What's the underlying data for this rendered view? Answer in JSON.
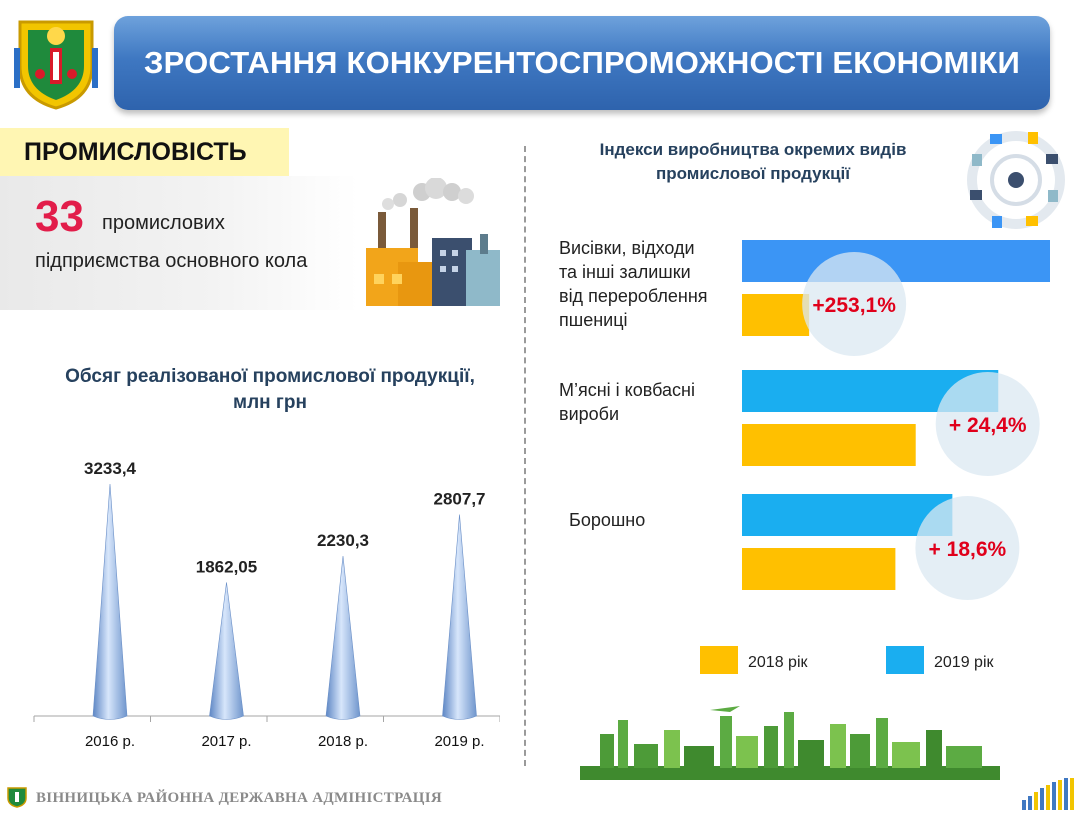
{
  "header": {
    "title": "ЗРОСТАННЯ КОНКУРЕНТОСПРОМОЖНОСТІ ЕКОНОМІКИ"
  },
  "industry": {
    "section_label": "ПРОМИСЛОВІСТЬ",
    "enterprise_count": "33",
    "enterprise_text_1": "промислових",
    "enterprise_text_2": "підприємства основного кола"
  },
  "icons": {
    "crest": "coat-of-arms-icon",
    "factory": "factory-icon",
    "gears": "industry-gears-icon",
    "skyline": "city-skyline-icon"
  },
  "colors": {
    "banner": "#3f78c2",
    "series_2018": "#ffc000",
    "series_2019": "#1aaef0",
    "series_2019_top": "#3b95f5",
    "percent_text": "#e0001b",
    "stat_number": "#e21d4a"
  },
  "chart_data": [
    {
      "type": "bar",
      "shape": "cone",
      "title": "Обсяг реалізованої промислової продукції, млн грн",
      "categories": [
        "2016 р.",
        "2017 р.",
        "2018 р.",
        "2019 р."
      ],
      "values": [
        3233.4,
        1862.05,
        2230.3,
        2807.7
      ],
      "value_labels": [
        "3233,4",
        "1862,05",
        "2230,3",
        "2807,7"
      ],
      "ylim": [
        0,
        3233.4
      ],
      "grid": false
    },
    {
      "type": "bar",
      "orientation": "horizontal",
      "title": "Індекси виробництва окремих видів промислової продукції",
      "categories": [
        [
          "Висівки, відходи",
          "та інші залишки",
          "від перероблення",
          "пшениці"
        ],
        [
          "М’ясні і ковбасні",
          "вироби"
        ],
        [
          "Борошно"
        ]
      ],
      "series": [
        {
          "name": "2019 рік",
          "values": [
            100,
            83.2,
            68.3
          ]
        },
        {
          "name": "2018 рік",
          "values": [
            21.8,
            56.4,
            49.8
          ]
        }
      ],
      "annotations": [
        "+253,1%",
        "+ 24,4%",
        "+ 18,6%"
      ],
      "legend_position": "bottom",
      "grid": false
    }
  ],
  "footer": {
    "organization": "ВІННИЦЬКА РАЙОННА ДЕРЖАВНА АДМІНІСТРАЦІЯ"
  }
}
